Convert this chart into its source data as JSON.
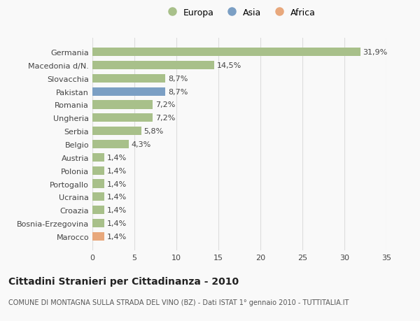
{
  "categories": [
    "Marocco",
    "Bosnia-Erzegovina",
    "Croazia",
    "Ucraina",
    "Portogallo",
    "Polonia",
    "Austria",
    "Belgio",
    "Serbia",
    "Ungheria",
    "Romania",
    "Pakistan",
    "Slovacchia",
    "Macedonia d/N.",
    "Germania"
  ],
  "values": [
    1.4,
    1.4,
    1.4,
    1.4,
    1.4,
    1.4,
    1.4,
    4.3,
    5.8,
    7.2,
    7.2,
    8.7,
    8.7,
    14.5,
    31.9
  ],
  "labels": [
    "1,4%",
    "1,4%",
    "1,4%",
    "1,4%",
    "1,4%",
    "1,4%",
    "1,4%",
    "4,3%",
    "5,8%",
    "7,2%",
    "7,2%",
    "8,7%",
    "8,7%",
    "14,5%",
    "31,9%"
  ],
  "colors": [
    "#e8a87c",
    "#a8c08a",
    "#a8c08a",
    "#a8c08a",
    "#a8c08a",
    "#a8c08a",
    "#a8c08a",
    "#a8c08a",
    "#a8c08a",
    "#a8c08a",
    "#a8c08a",
    "#7b9fc4",
    "#a8c08a",
    "#a8c08a",
    "#a8c08a"
  ],
  "legend_items": [
    {
      "label": "Europa",
      "color": "#a8c08a"
    },
    {
      "label": "Asia",
      "color": "#7b9fc4"
    },
    {
      "label": "Africa",
      "color": "#e8a87c"
    }
  ],
  "xlim": [
    0,
    35
  ],
  "xticks": [
    0,
    5,
    10,
    15,
    20,
    25,
    30,
    35
  ],
  "title": "Cittadini Stranieri per Cittadinanza - 2010",
  "subtitle": "COMUNE DI MONTAGNA SULLA STRADA DEL VINO (BZ) - Dati ISTAT 1° gennaio 2010 - TUTTITALIA.IT",
  "background_color": "#f9f9f9",
  "grid_color": "#dddddd",
  "bar_height": 0.65,
  "label_fontsize": 8,
  "tick_fontsize": 8,
  "title_fontsize": 10,
  "subtitle_fontsize": 7
}
